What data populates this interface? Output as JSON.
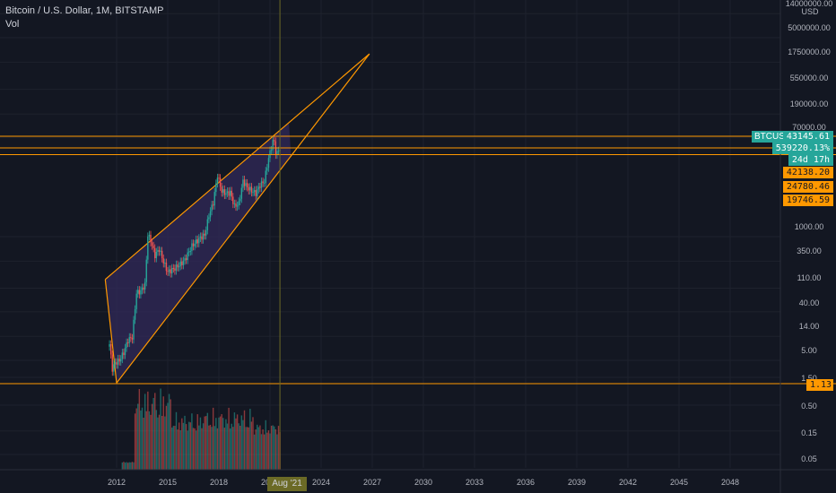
{
  "legend": {
    "title": "Bitcoin / U.S. Dollar, 1M, BITSTAMP",
    "indicator": "Vol"
  },
  "colors": {
    "background": "#131722",
    "grid": "#1e222d",
    "up": "#26a69a",
    "down": "#ef5350",
    "line": "#ff9800",
    "wedge_fill": "#312a5a",
    "axis_text": "#b2b5be"
  },
  "price_axis": {
    "unit": "USD",
    "ticks": [
      "14000000.00",
      "5000000.00",
      "1750000.00",
      "550000.00",
      "190000.00",
      "70000.00",
      "1000.00",
      "350.00",
      "110.00",
      "40.00",
      "14.00",
      "5.00",
      "1.50",
      "0.50",
      "0.15",
      "0.05"
    ]
  },
  "badges": {
    "symbol": "BTCUSD",
    "last_price": "43145.61",
    "change_pct": "539220.13%",
    "countdown": "24d 17h",
    "levels": [
      "42138.20",
      "24780.46",
      "19746.59"
    ],
    "low_level": "1.13"
  },
  "time_axis": {
    "labels": [
      "2012",
      "2015",
      "2018",
      "2021",
      "2024",
      "2027",
      "2030",
      "2033",
      "2036",
      "2039",
      "2042",
      "2045",
      "2048"
    ],
    "cursor_label": "Aug '21"
  },
  "chart_data": {
    "type": "candlestick",
    "symbol": "Bitcoin / U.S. Dollar",
    "interval": "1M",
    "exchange": "BITSTAMP",
    "y_scale": "log",
    "x_range": [
      "2011-08",
      "2049-06"
    ],
    "price_series": [
      [
        "2011-08",
        10
      ],
      [
        "2011-10",
        3.5
      ],
      [
        "2011-12",
        4.5
      ],
      [
        "2012-03",
        5
      ],
      [
        "2012-06",
        7
      ],
      [
        "2012-09",
        12
      ],
      [
        "2012-12",
        13.5
      ],
      [
        "2013-03",
        90
      ],
      [
        "2013-06",
        97
      ],
      [
        "2013-09",
        130
      ],
      [
        "2013-11",
        1100
      ],
      [
        "2014-01",
        850
      ],
      [
        "2014-04",
        450
      ],
      [
        "2014-07",
        590
      ],
      [
        "2014-10",
        340
      ],
      [
        "2015-01",
        220
      ],
      [
        "2015-06",
        260
      ],
      [
        "2015-10",
        310
      ],
      [
        "2016-01",
        370
      ],
      [
        "2016-06",
        670
      ],
      [
        "2016-12",
        960
      ],
      [
        "2017-03",
        1070
      ],
      [
        "2017-06",
        2500
      ],
      [
        "2017-09",
        4300
      ],
      [
        "2017-12",
        14000
      ],
      [
        "2018-03",
        7000
      ],
      [
        "2018-06",
        6400
      ],
      [
        "2018-09",
        6600
      ],
      [
        "2018-12",
        3700
      ],
      [
        "2019-03",
        4100
      ],
      [
        "2019-06",
        10800
      ],
      [
        "2019-09",
        8300
      ],
      [
        "2019-12",
        7200
      ],
      [
        "2020-03",
        6400
      ],
      [
        "2020-06",
        9100
      ],
      [
        "2020-09",
        10800
      ],
      [
        "2020-12",
        29000
      ],
      [
        "2021-03",
        58800
      ],
      [
        "2021-04",
        57800
      ],
      [
        "2021-05",
        37300
      ],
      [
        "2021-06",
        35000
      ],
      [
        "2021-07",
        41500
      ],
      [
        "2021-08",
        43145.61
      ]
    ],
    "wedge": {
      "upper_line": [
        [
          "2011-05",
          160
        ],
        [
          "2026-11",
          2500000
        ]
      ],
      "lower_line": [
        [
          "2012-01",
          1.9
        ],
        [
          "2026-11",
          2500000
        ]
      ]
    },
    "horizontal_levels": [
      64000,
      42138.2,
      24780.46,
      19746.59,
      1.13
    ],
    "cursor_time": "2021-08",
    "volume_note": "relative monthly volume bars, peaks around 2013-2014"
  }
}
